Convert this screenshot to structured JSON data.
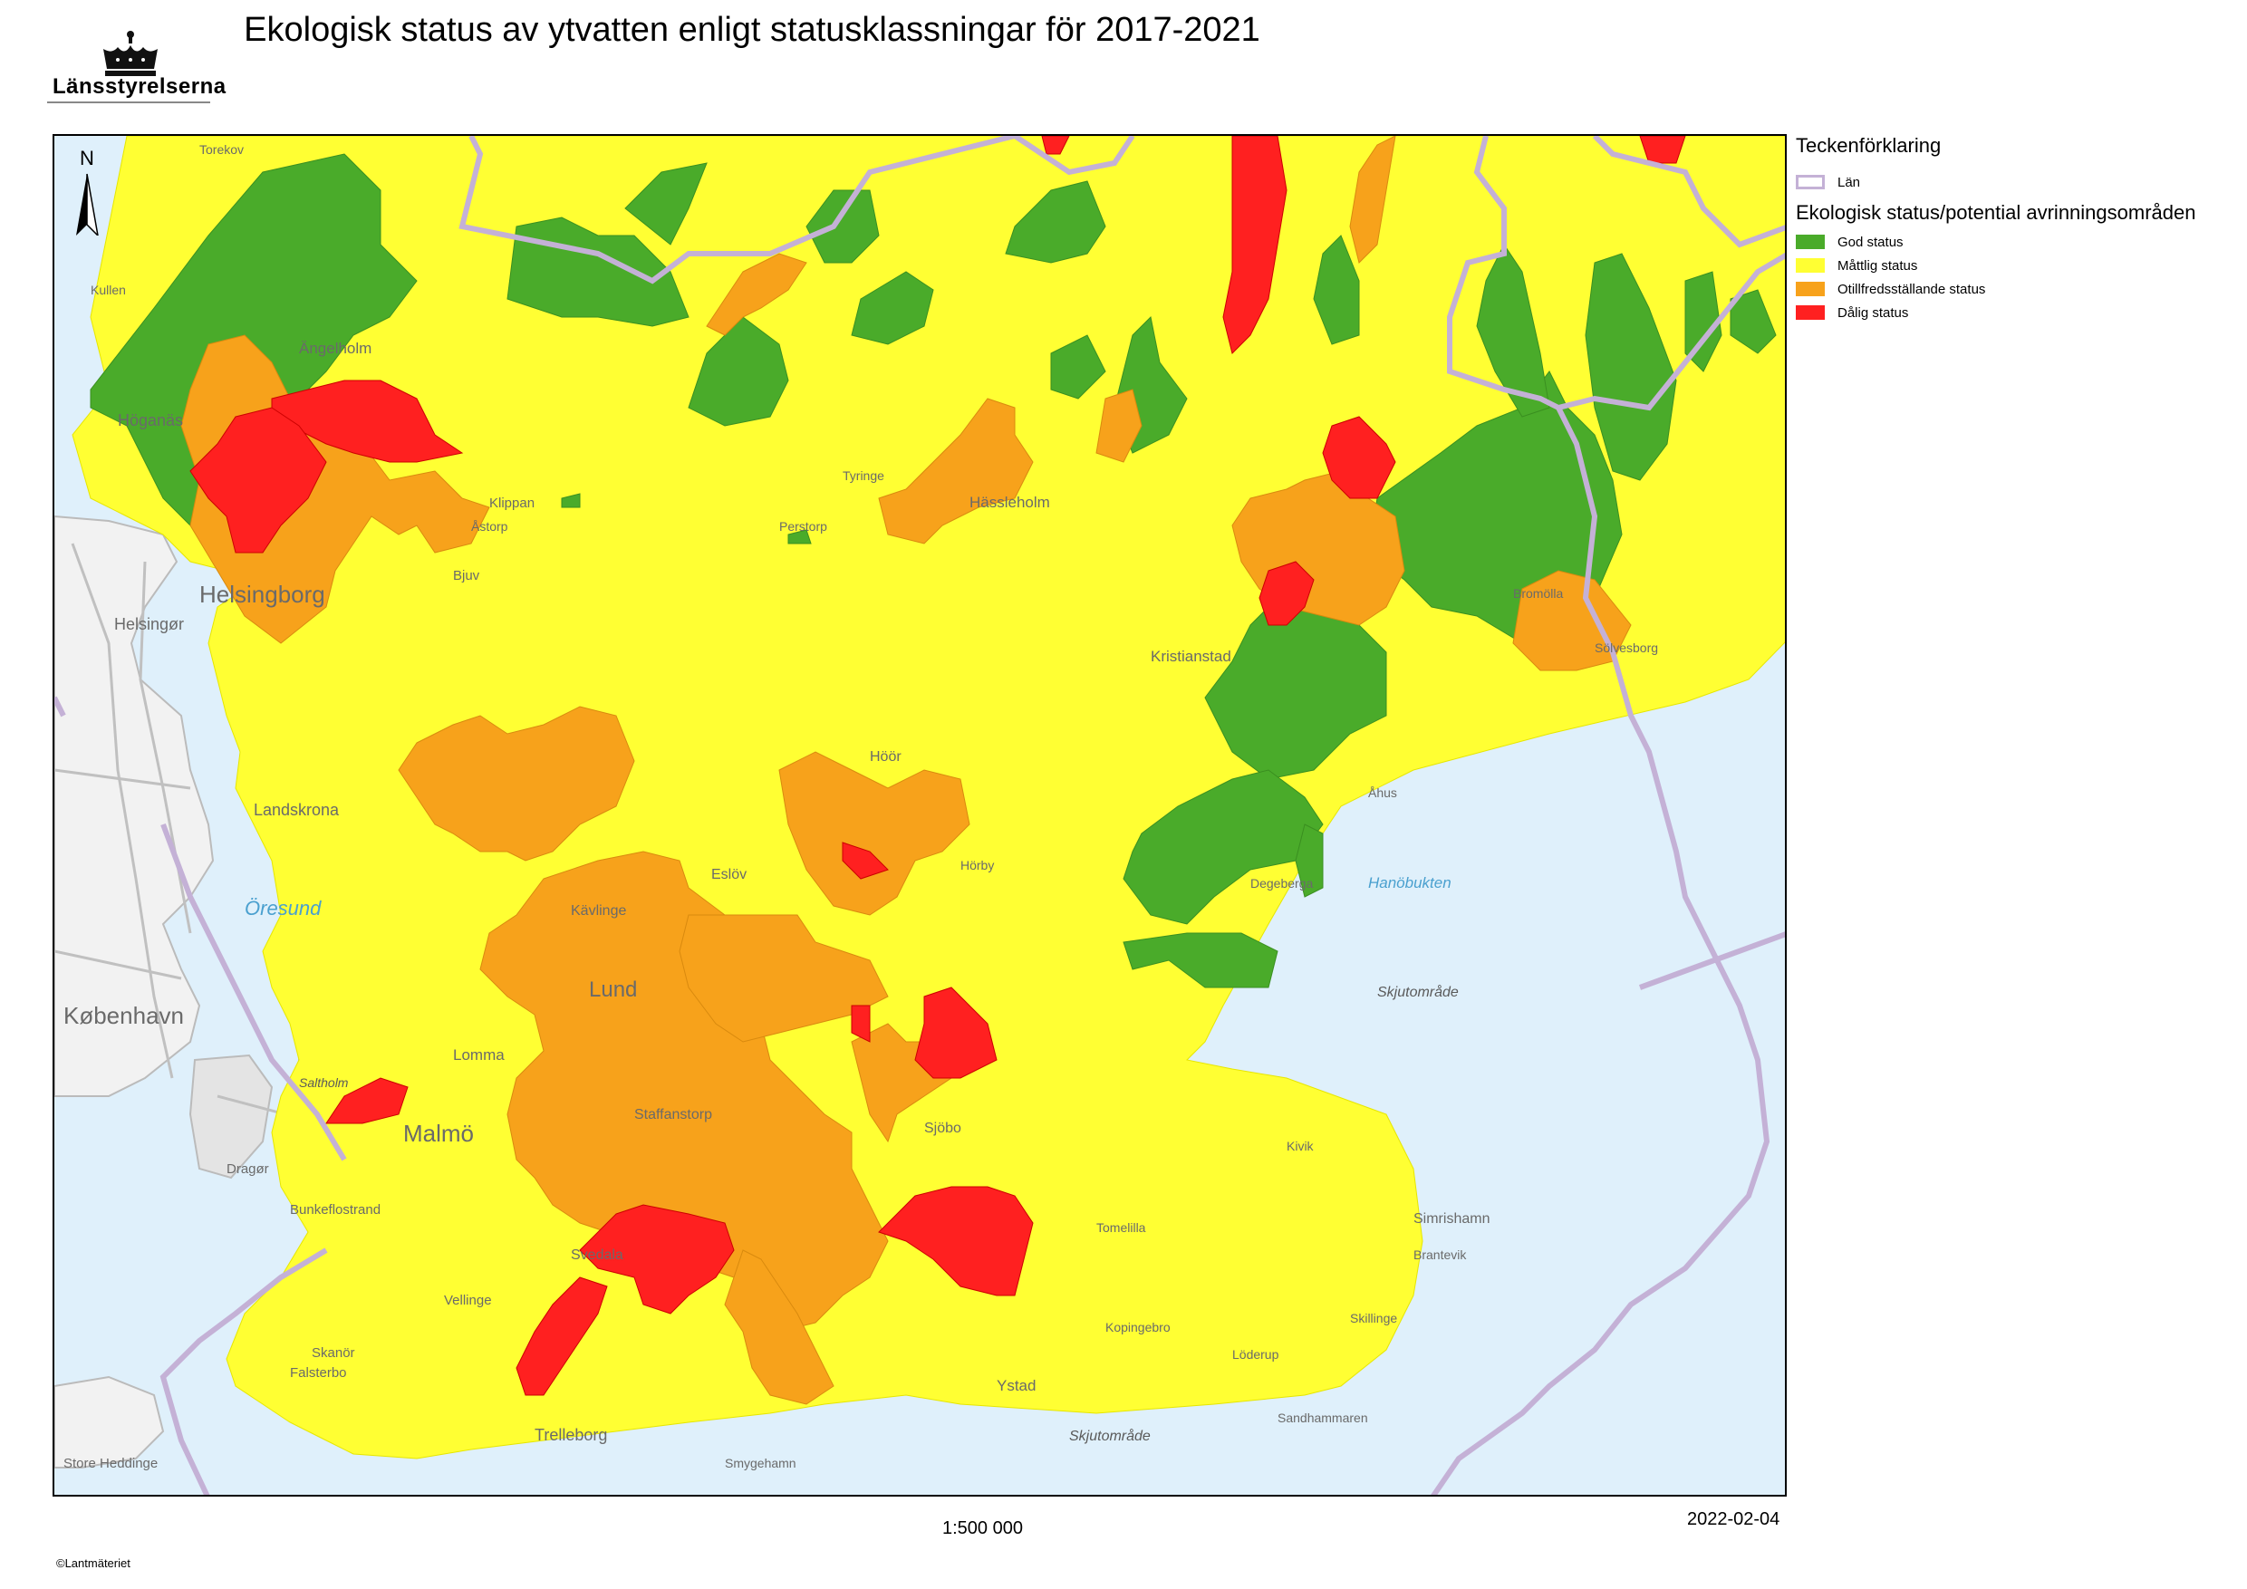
{
  "title": "Ekologisk status av ytvatten enligt statusklassningar för 2017-2021",
  "logo": {
    "text": "Länsstyrelserna",
    "icon": "crown-icon"
  },
  "legend": {
    "title": "Teckenförklaring",
    "lan_label": "Län",
    "subtitle": "Ekologisk status/potential avrinningsområden",
    "items": [
      {
        "label": "God status",
        "color": "#4aab2a"
      },
      {
        "label": "Måttlig status",
        "color": "#ffff33"
      },
      {
        "label": "Otillfredsställande status",
        "color": "#f7a21b"
      },
      {
        "label": "Dålig status",
        "color": "#ff2020"
      }
    ]
  },
  "north_label": "N",
  "scale": "1:500 000",
  "date": "2022-02-04",
  "credit": "©Lantmäteriet",
  "places": {
    "helsingborg": "Helsingborg",
    "helsingor": "Helsingør",
    "kobenhavn": "København",
    "lund": "Lund",
    "malmo": "Malmö",
    "trelleborg": "Trelleborg",
    "hoganas": "Höganäs",
    "angelholm": "Ängelholm",
    "landskrona": "Landskrona",
    "kristianstad": "Kristianstad",
    "hassleholm": "Hässleholm",
    "ystad": "Ystad",
    "simrishamn": "Simrishamn",
    "staffanstorp": "Staffanstorp",
    "svedala": "Svedala",
    "hoor": "Höör",
    "eslov": "Eslöv",
    "sjobo": "Sjöbo",
    "kavlinge": "Kävlinge",
    "lomma": "Lomma",
    "vellinge": "Vellinge",
    "skanor": "Skanör",
    "falsterbo": "Falsterbo",
    "dragor": "Dragør",
    "store_heddinge": "Store Heddinge",
    "bunkeflostrand": "Bunkeflostrand",
    "smygehamn": "Smygehamn",
    "klippan": "Klippan",
    "bjuv": "Bjuv",
    "tomelilla": "Tomelilla",
    "horby": "Hörby",
    "oresund": "Öresund",
    "saltholm": "Saltholm",
    "hanobukten": "Hanöbukten",
    "skjutomrade1": "Skjutområde",
    "skjutomrade2": "Skjutområde",
    "kullen": "Kullen",
    "torekov": "Torekov",
    "astorp": "Åstorp",
    "perstorp": "Perstorp",
    "tyringe": "Tyringe",
    "bromolla": "Bromölla",
    "solvesborg": "Sölvesborg",
    "ahus": "Åhus",
    "degeberga": "Degeberga",
    "brantevik": "Brantevik",
    "skillinge": "Skillinge",
    "kopingebro": "Kopingebro",
    "sandhammaren": "Sandhammaren",
    "loderup": "Löderup",
    "kivik": "Kivik"
  }
}
